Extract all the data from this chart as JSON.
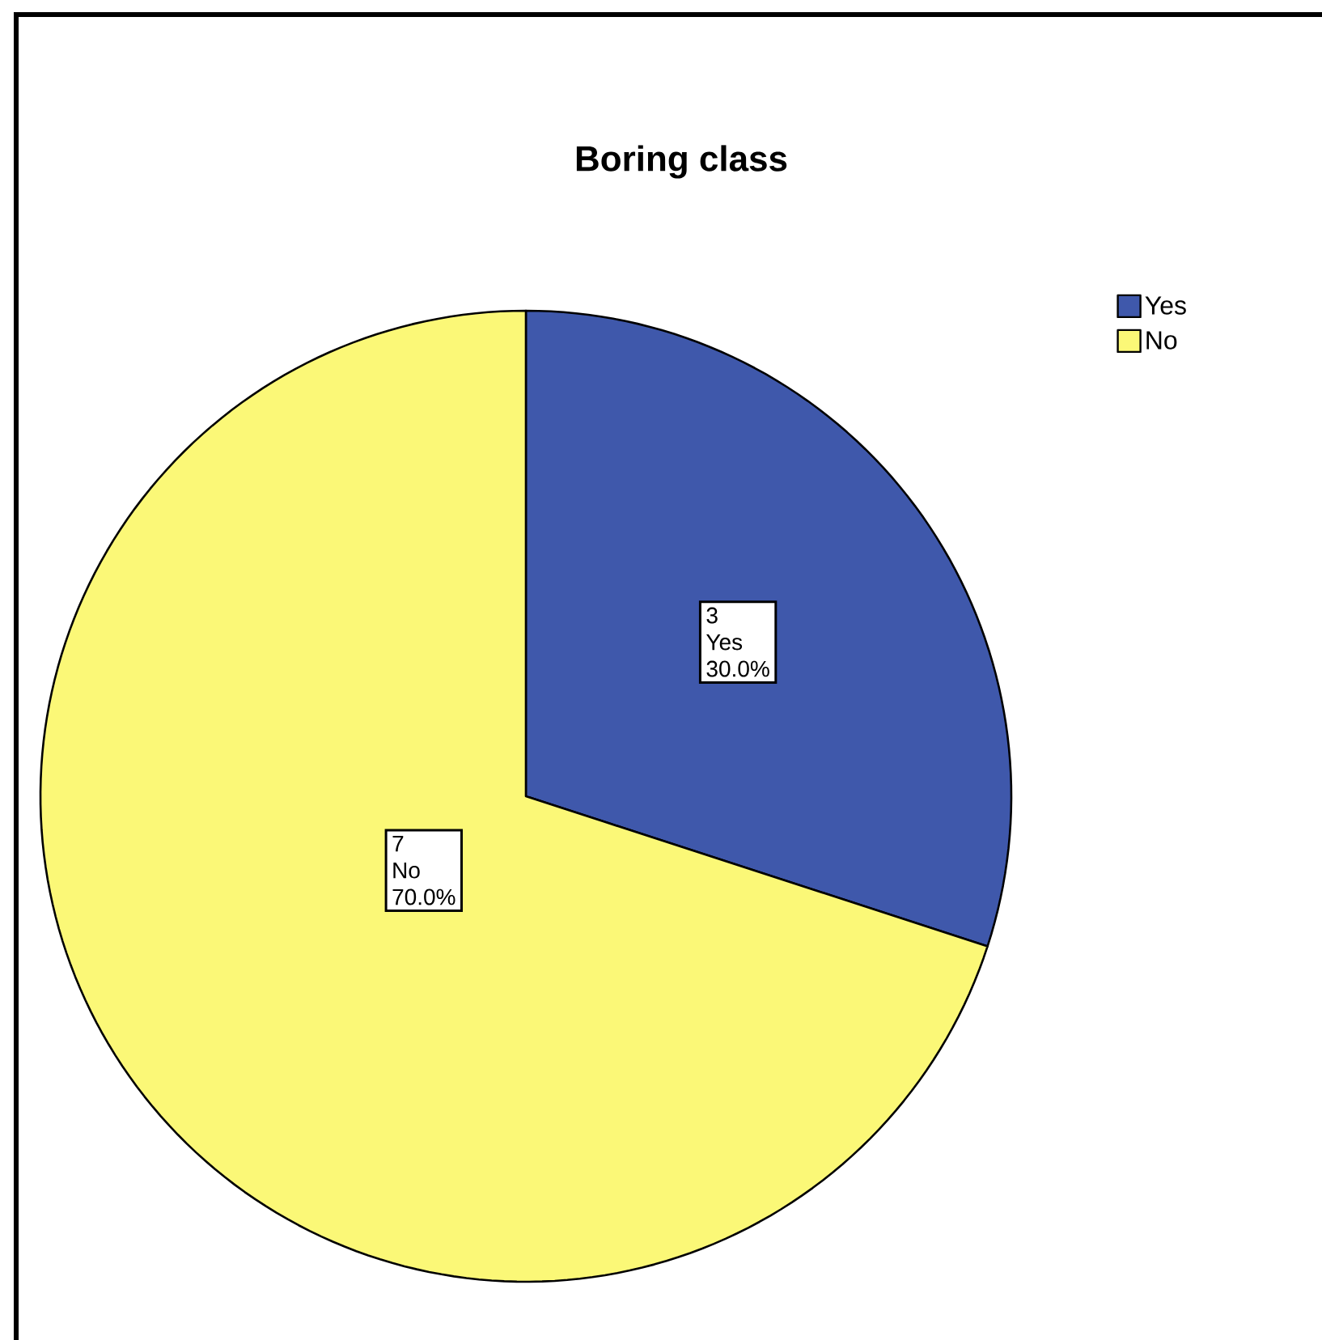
{
  "chart_data": {
    "type": "pie",
    "title": "Boring class",
    "categories": [
      "Yes",
      "No"
    ],
    "values": [
      30,
      70
    ],
    "colors": [
      "#3f58ab",
      "#fbf877"
    ],
    "value_labels": [
      "30.0%",
      "70.0%"
    ],
    "annotations": [
      "3",
      "7"
    ],
    "legend": "top right"
  }
}
